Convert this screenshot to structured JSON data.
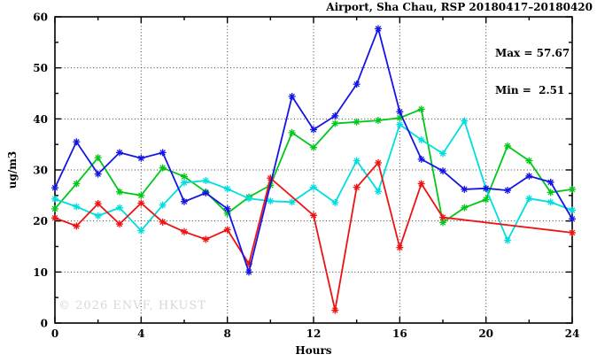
{
  "title": "Airport, Sha Chau, RSP 20180417–20180420",
  "watermark": "© 2026 ENVF, HKUST",
  "chart_data": {
    "type": "line",
    "title": "Airport, Sha Chau, RSP 20180417–20180420",
    "xlabel": "Hours",
    "ylabel": "ug/m3",
    "xlim": [
      0,
      24
    ],
    "ylim": [
      0,
      60
    ],
    "x_major_ticks": [
      0,
      4,
      8,
      12,
      16,
      20,
      24
    ],
    "y_major_ticks": [
      0,
      10,
      20,
      30,
      40,
      50,
      60
    ],
    "x_minor_step": 2,
    "y_minor_step": 5,
    "grid": true,
    "legend_position": "none",
    "annotation": {
      "lines": [
        "Max = 57.67",
        "Min =  2.51"
      ],
      "max": 57.67,
      "min": 2.51
    },
    "hours": [
      0,
      1,
      2,
      3,
      4,
      5,
      6,
      7,
      8,
      9,
      10,
      11,
      12,
      13,
      14,
      15,
      16,
      17,
      18,
      19,
      20,
      21,
      22,
      23,
      24
    ],
    "series": [
      {
        "name": "green",
        "color": "#00c818",
        "values": [
          22.4,
          27.3,
          32.4,
          25.7,
          25.0,
          30.4,
          28.7,
          25.7,
          21.5,
          24.7,
          27.0,
          37.3,
          34.4,
          39.1,
          39.4,
          39.7,
          40.2,
          41.9,
          19.7,
          22.6,
          24.2,
          34.7,
          31.8,
          25.6,
          26.2
        ]
      },
      {
        "name": "cyan",
        "color": "#00dede",
        "values": [
          24.3,
          22.8,
          21.0,
          22.6,
          18.1,
          23.1,
          27.5,
          27.9,
          26.3,
          24.4,
          23.9,
          23.7,
          26.6,
          23.6,
          31.8,
          25.8,
          38.9,
          35.9,
          33.2,
          39.6,
          26.3,
          16.2,
          24.4,
          23.7,
          22.1
        ]
      },
      {
        "name": "red",
        "color": "#ef1212",
        "values": [
          20.6,
          19.0,
          23.4,
          19.4,
          23.5,
          19.8,
          17.9,
          16.4,
          18.3,
          11.6,
          28.4,
          null,
          21.1,
          2.51,
          26.6,
          31.4,
          14.8,
          27.3,
          20.7,
          null,
          null,
          null,
          null,
          null,
          17.7
        ]
      },
      {
        "name": "blue",
        "color": "#1414e6",
        "values": [
          26.5,
          35.5,
          29.2,
          33.4,
          32.3,
          33.4,
          23.8,
          25.5,
          22.4,
          10.0,
          null,
          44.4,
          37.9,
          40.6,
          46.8,
          57.67,
          41.4,
          32.1,
          29.8,
          26.2,
          26.4,
          26.0,
          28.8,
          27.6,
          20.4
        ]
      }
    ]
  }
}
